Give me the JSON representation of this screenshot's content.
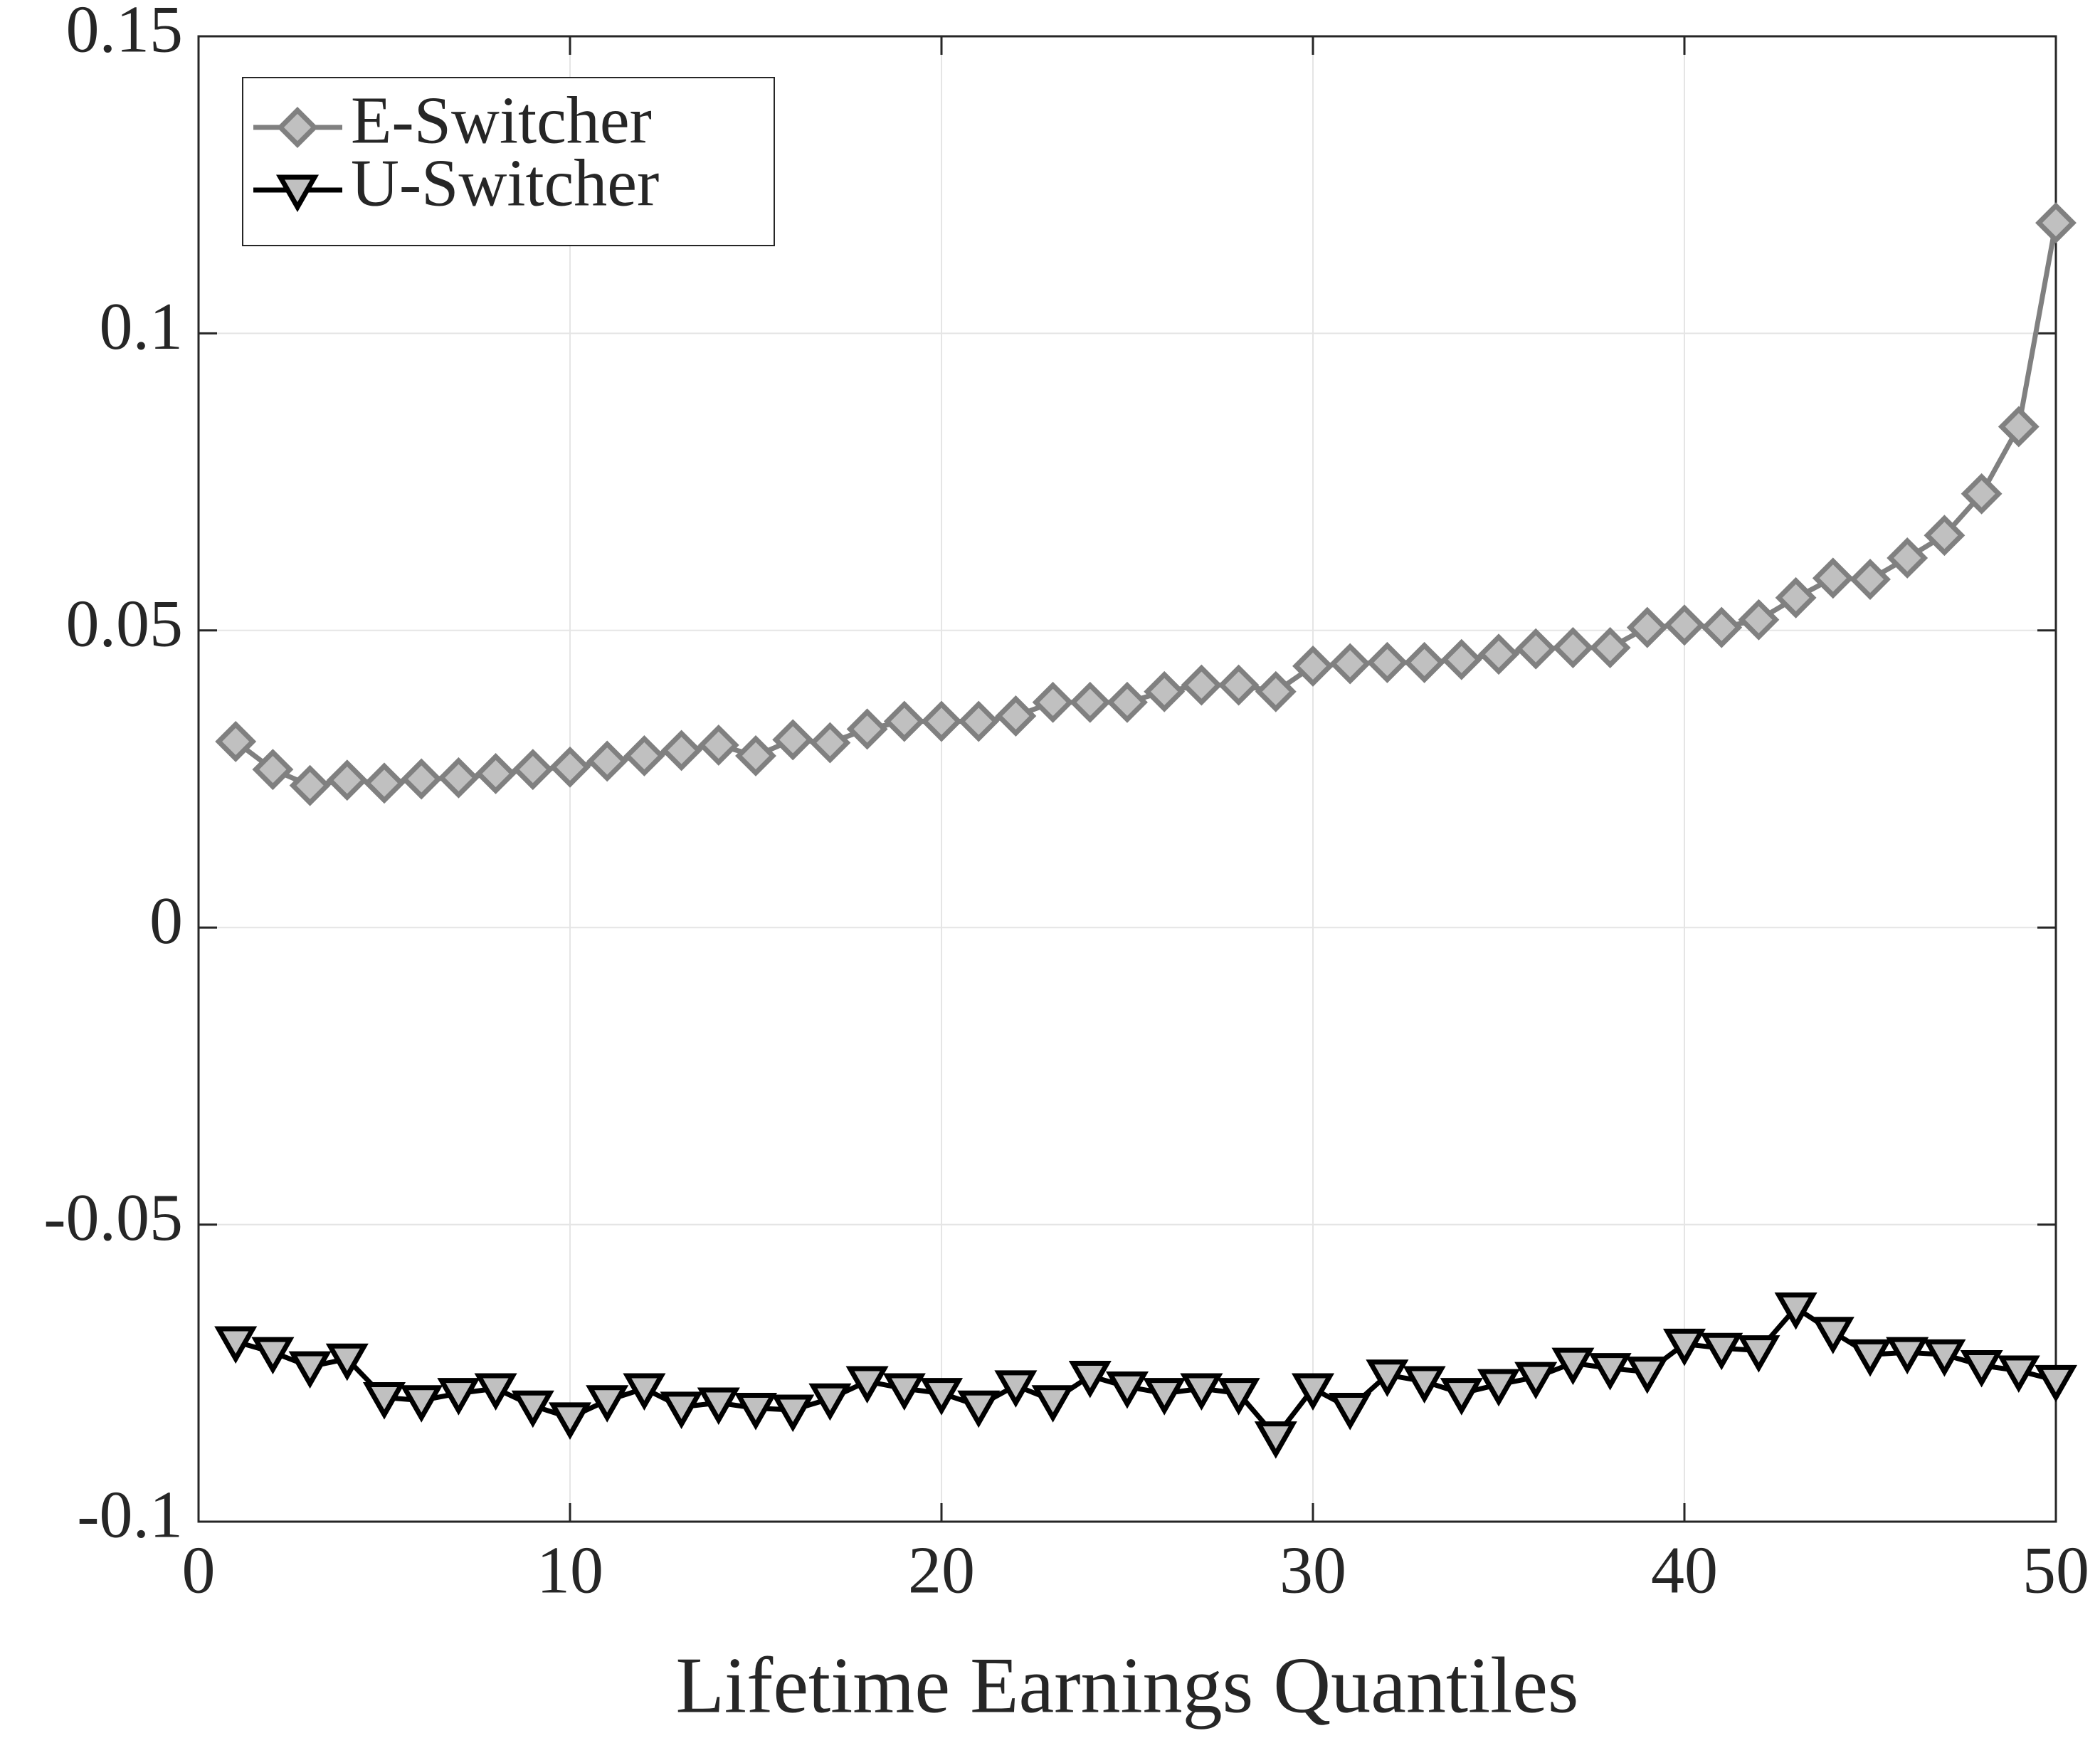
{
  "chart_data": {
    "type": "line",
    "xlabel": "Lifetime Earnings Quantiles",
    "x": [
      1,
      2,
      3,
      4,
      5,
      6,
      7,
      8,
      9,
      10,
      11,
      12,
      13,
      14,
      15,
      16,
      17,
      18,
      19,
      20,
      21,
      22,
      23,
      24,
      25,
      26,
      27,
      28,
      29,
      30,
      31,
      32,
      33,
      34,
      35,
      36,
      37,
      38,
      39,
      40,
      41,
      42,
      43,
      44,
      45,
      46,
      47,
      48,
      49,
      50
    ],
    "series": [
      {
        "name": "E-Switcher",
        "color": "#808080",
        "marker": "diamond",
        "marker_fill": "#c0c0c0",
        "values": [
          0.0313,
          0.0266,
          0.0239,
          0.0248,
          0.0243,
          0.025,
          0.0252,
          0.0259,
          0.0266,
          0.027,
          0.028,
          0.0289,
          0.0298,
          0.0307,
          0.0289,
          0.0316,
          0.0311,
          0.0334,
          0.0347,
          0.0347,
          0.0347,
          0.0356,
          0.0379,
          0.0379,
          0.0379,
          0.0397,
          0.0408,
          0.0408,
          0.0397,
          0.044,
          0.0444,
          0.0446,
          0.0446,
          0.0451,
          0.046,
          0.0469,
          0.0471,
          0.0471,
          0.0505,
          0.0509,
          0.0505,
          0.0518,
          0.0555,
          0.0588,
          0.0586,
          0.0622,
          0.066,
          0.073,
          0.0843,
          0.1186
        ]
      },
      {
        "name": "U-Switcher",
        "color": "#000000",
        "marker": "triangle-down",
        "marker_fill": "#c0c0c0",
        "values": [
          -0.0697,
          -0.0715,
          -0.0739,
          -0.0726,
          -0.0791,
          -0.0796,
          -0.0784,
          -0.0776,
          -0.0805,
          -0.0825,
          -0.0796,
          -0.0776,
          -0.0807,
          -0.08,
          -0.0809,
          -0.0812,
          -0.0793,
          -0.0764,
          -0.0776,
          -0.0784,
          -0.0805,
          -0.0771,
          -0.0796,
          -0.0755,
          -0.0773,
          -0.0784,
          -0.0776,
          -0.0784,
          -0.0857,
          -0.0776,
          -0.0809,
          -0.0753,
          -0.0764,
          -0.0784,
          -0.0769,
          -0.0757,
          -0.0733,
          -0.0742,
          -0.0748,
          -0.0701,
          -0.0708,
          -0.0712,
          -0.064,
          -0.0681,
          -0.0719,
          -0.0715,
          -0.0719,
          -0.0737,
          -0.0746,
          -0.0762
        ]
      }
    ],
    "xlim": [
      0,
      50
    ],
    "xticks": [
      0,
      10,
      20,
      30,
      40,
      50
    ],
    "ylim": [
      -0.1,
      0.15
    ],
    "yticks": [
      -0.1,
      -0.05,
      0,
      0.05,
      0.1,
      0.15
    ],
    "grid": true,
    "legend": "northwest"
  }
}
